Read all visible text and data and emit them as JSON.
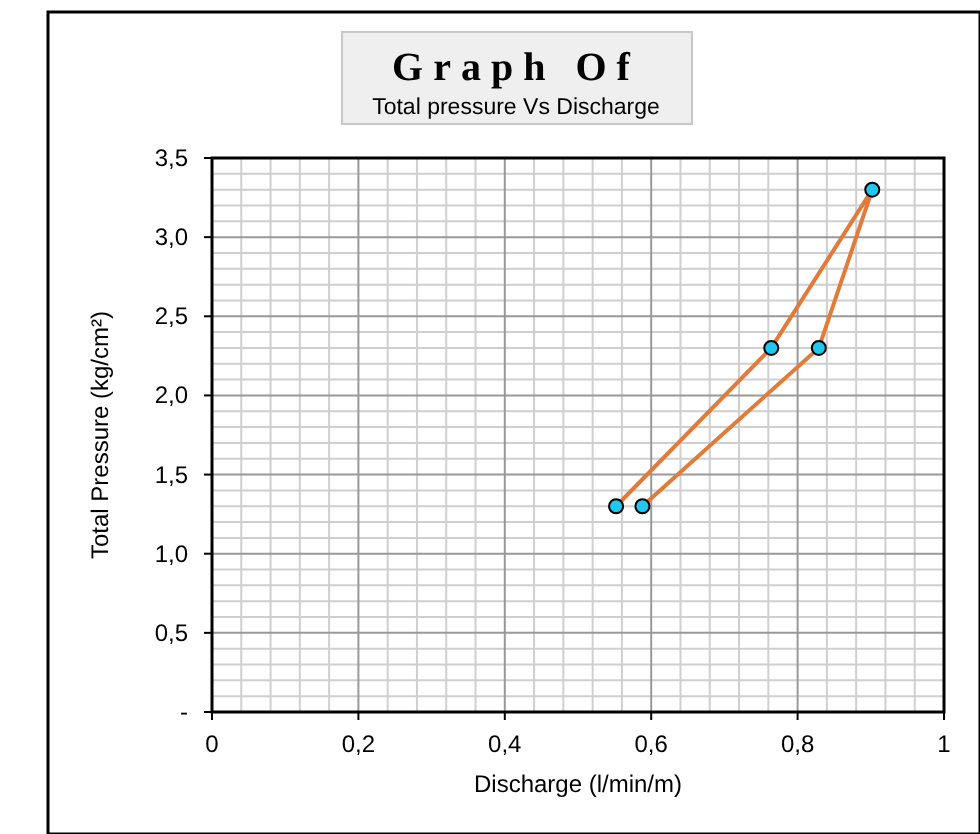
{
  "chart_data": {
    "type": "line",
    "title": "Graph Of",
    "subtitle": "Total pressure Vs Discharge",
    "xlabel": "Discharge (l/min/m)",
    "ylabel": "Total Pressure (kg/cm²)",
    "series": [
      {
        "color": "#e07b39",
        "x": [
          0.552,
          0.764,
          0.902,
          0.829,
          0.588
        ],
        "values": [
          1.3,
          2.3,
          3.3,
          2.3,
          1.3
        ]
      }
    ],
    "xlim": [
      0,
      1
    ],
    "ylim": [
      0,
      3.5
    ],
    "xticks": [
      0,
      {
        "value": 0.2,
        "label": "0,2"
      },
      {
        "value": 0.4,
        "label": "0,4"
      },
      {
        "value": 0.6,
        "label": "0,6"
      },
      {
        "value": 0.8,
        "label": "0,8"
      },
      1
    ],
    "yticks": [
      {
        "value": 0,
        "label": "-"
      },
      {
        "value": 0.5,
        "label": "0,5"
      },
      {
        "value": 1,
        "label": "1,0"
      },
      {
        "value": 1.5,
        "label": "1,5"
      },
      {
        "value": 2,
        "label": "2,0"
      },
      {
        "value": 2.5,
        "label": "2,5"
      },
      {
        "value": 3,
        "label": "3,0"
      },
      {
        "value": 3.5,
        "label": "3,5"
      }
    ],
    "grid": true,
    "marker": "circle",
    "line_style": "solid"
  }
}
